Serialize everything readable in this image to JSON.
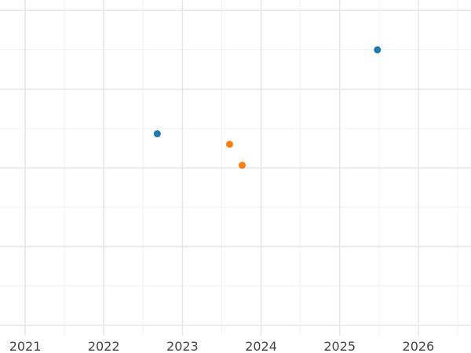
{
  "chart_data": {
    "type": "scatter",
    "title": "",
    "xlabel": "",
    "ylabel": "",
    "x_ticks": [
      {
        "value": 2021,
        "label": "2021"
      },
      {
        "value": 2022,
        "label": "2022"
      },
      {
        "value": 2023,
        "label": "2023"
      },
      {
        "value": 2024,
        "label": "2024"
      },
      {
        "value": 2025,
        "label": "2025"
      },
      {
        "value": 2026,
        "label": "2026"
      }
    ],
    "x_minor_ticks": [
      2021.5,
      2022.5,
      2023.5,
      2024.5,
      2025.5,
      2026.5
    ],
    "xlim": [
      2020.68,
      2026.67
    ],
    "ylim": [
      -0.2,
      6.2
    ],
    "y_major_gridlines": [
      0,
      1.5,
      3,
      4.5,
      6
    ],
    "y_minor_gridlines": [
      0.75,
      2.25,
      3.75,
      5.25
    ],
    "grid": true,
    "legend": "none",
    "series": [
      {
        "color": "#1f77b4",
        "x": [
          2022.68,
          2025.48
        ],
        "y": [
          3.65,
          5.25
        ]
      },
      {
        "color": "#ff7f0e",
        "x": [
          2023.6,
          2023.76
        ],
        "y": [
          3.45,
          3.05
        ]
      }
    ]
  }
}
